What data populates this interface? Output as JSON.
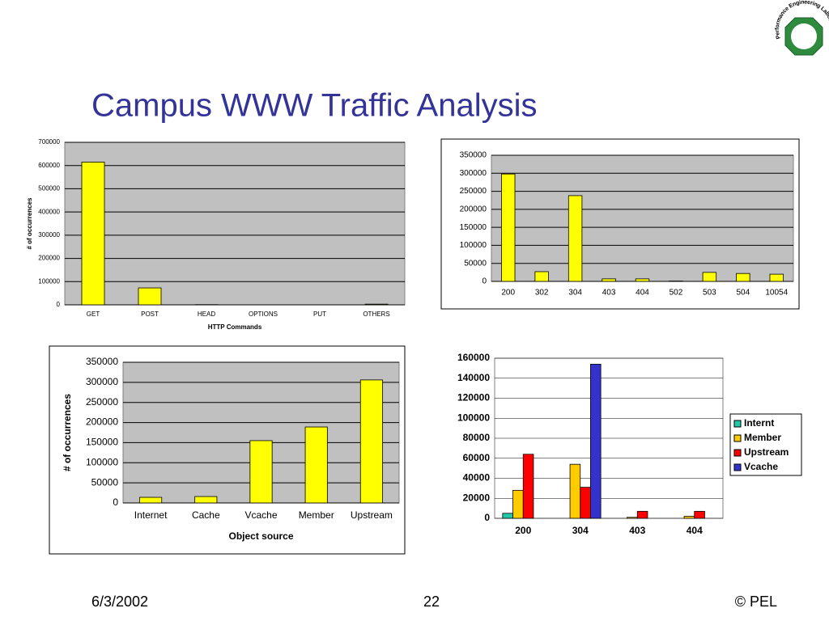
{
  "title": "Campus WWW Traffic Analysis",
  "logo_text": "Performance Engineering Laboratory",
  "footer": {
    "date": "6/3/2002",
    "page": "22",
    "owner": "© PEL"
  },
  "chart_data": [
    {
      "type": "bar",
      "x_label": "HTTP Commands",
      "y_label": "# of occurrences",
      "categories": [
        "GET",
        "POST",
        "HEAD",
        "OPTIONS",
        "PUT",
        "OTHERS"
      ],
      "values": [
        615000,
        73000,
        1000,
        0,
        0,
        3000
      ],
      "color": "#ffff00",
      "ylim": [
        0,
        700000
      ],
      "yticks": [
        0,
        100000,
        200000,
        300000,
        400000,
        500000,
        600000,
        700000
      ],
      "grid": true
    },
    {
      "type": "bar",
      "categories": [
        "200",
        "302",
        "304",
        "403",
        "404",
        "502",
        "503",
        "504",
        "10054"
      ],
      "values": [
        298000,
        27000,
        238000,
        7000,
        7000,
        1000,
        25000,
        22000,
        20000
      ],
      "color": "#ffff00",
      "ylim": [
        0,
        350000
      ],
      "yticks": [
        0,
        50000,
        100000,
        150000,
        200000,
        250000,
        300000,
        350000
      ],
      "grid": true
    },
    {
      "type": "bar",
      "x_label": "Object source",
      "y_label": "# of occurrences",
      "categories": [
        "Internet",
        "Cache",
        "Vcache",
        "Member",
        "Upstream"
      ],
      "values": [
        14000,
        16000,
        155000,
        189000,
        306000
      ],
      "color": "#ffff00",
      "ylim": [
        0,
        350000
      ],
      "yticks": [
        0,
        50000,
        100000,
        150000,
        200000,
        250000,
        300000,
        350000
      ],
      "grid": true
    },
    {
      "type": "bar",
      "categories": [
        "200",
        "304",
        "403",
        "404"
      ],
      "series": [
        {
          "name": "Internt",
          "color": "#22c8a8",
          "values": [
            5000,
            0,
            0,
            0
          ]
        },
        {
          "name": "Member",
          "color": "#ffcc00",
          "values": [
            28000,
            54000,
            1000,
            2000
          ]
        },
        {
          "name": "Upstream",
          "color": "#ff0000",
          "values": [
            64000,
            31000,
            7000,
            7000
          ]
        },
        {
          "name": "Vcache",
          "color": "#3333cc",
          "values": [
            0,
            154000,
            0,
            0
          ]
        }
      ],
      "ylim": [
        0,
        160000
      ],
      "yticks": [
        0,
        20000,
        40000,
        60000,
        80000,
        100000,
        120000,
        140000,
        160000
      ],
      "grid": true,
      "legend": "right"
    }
  ]
}
